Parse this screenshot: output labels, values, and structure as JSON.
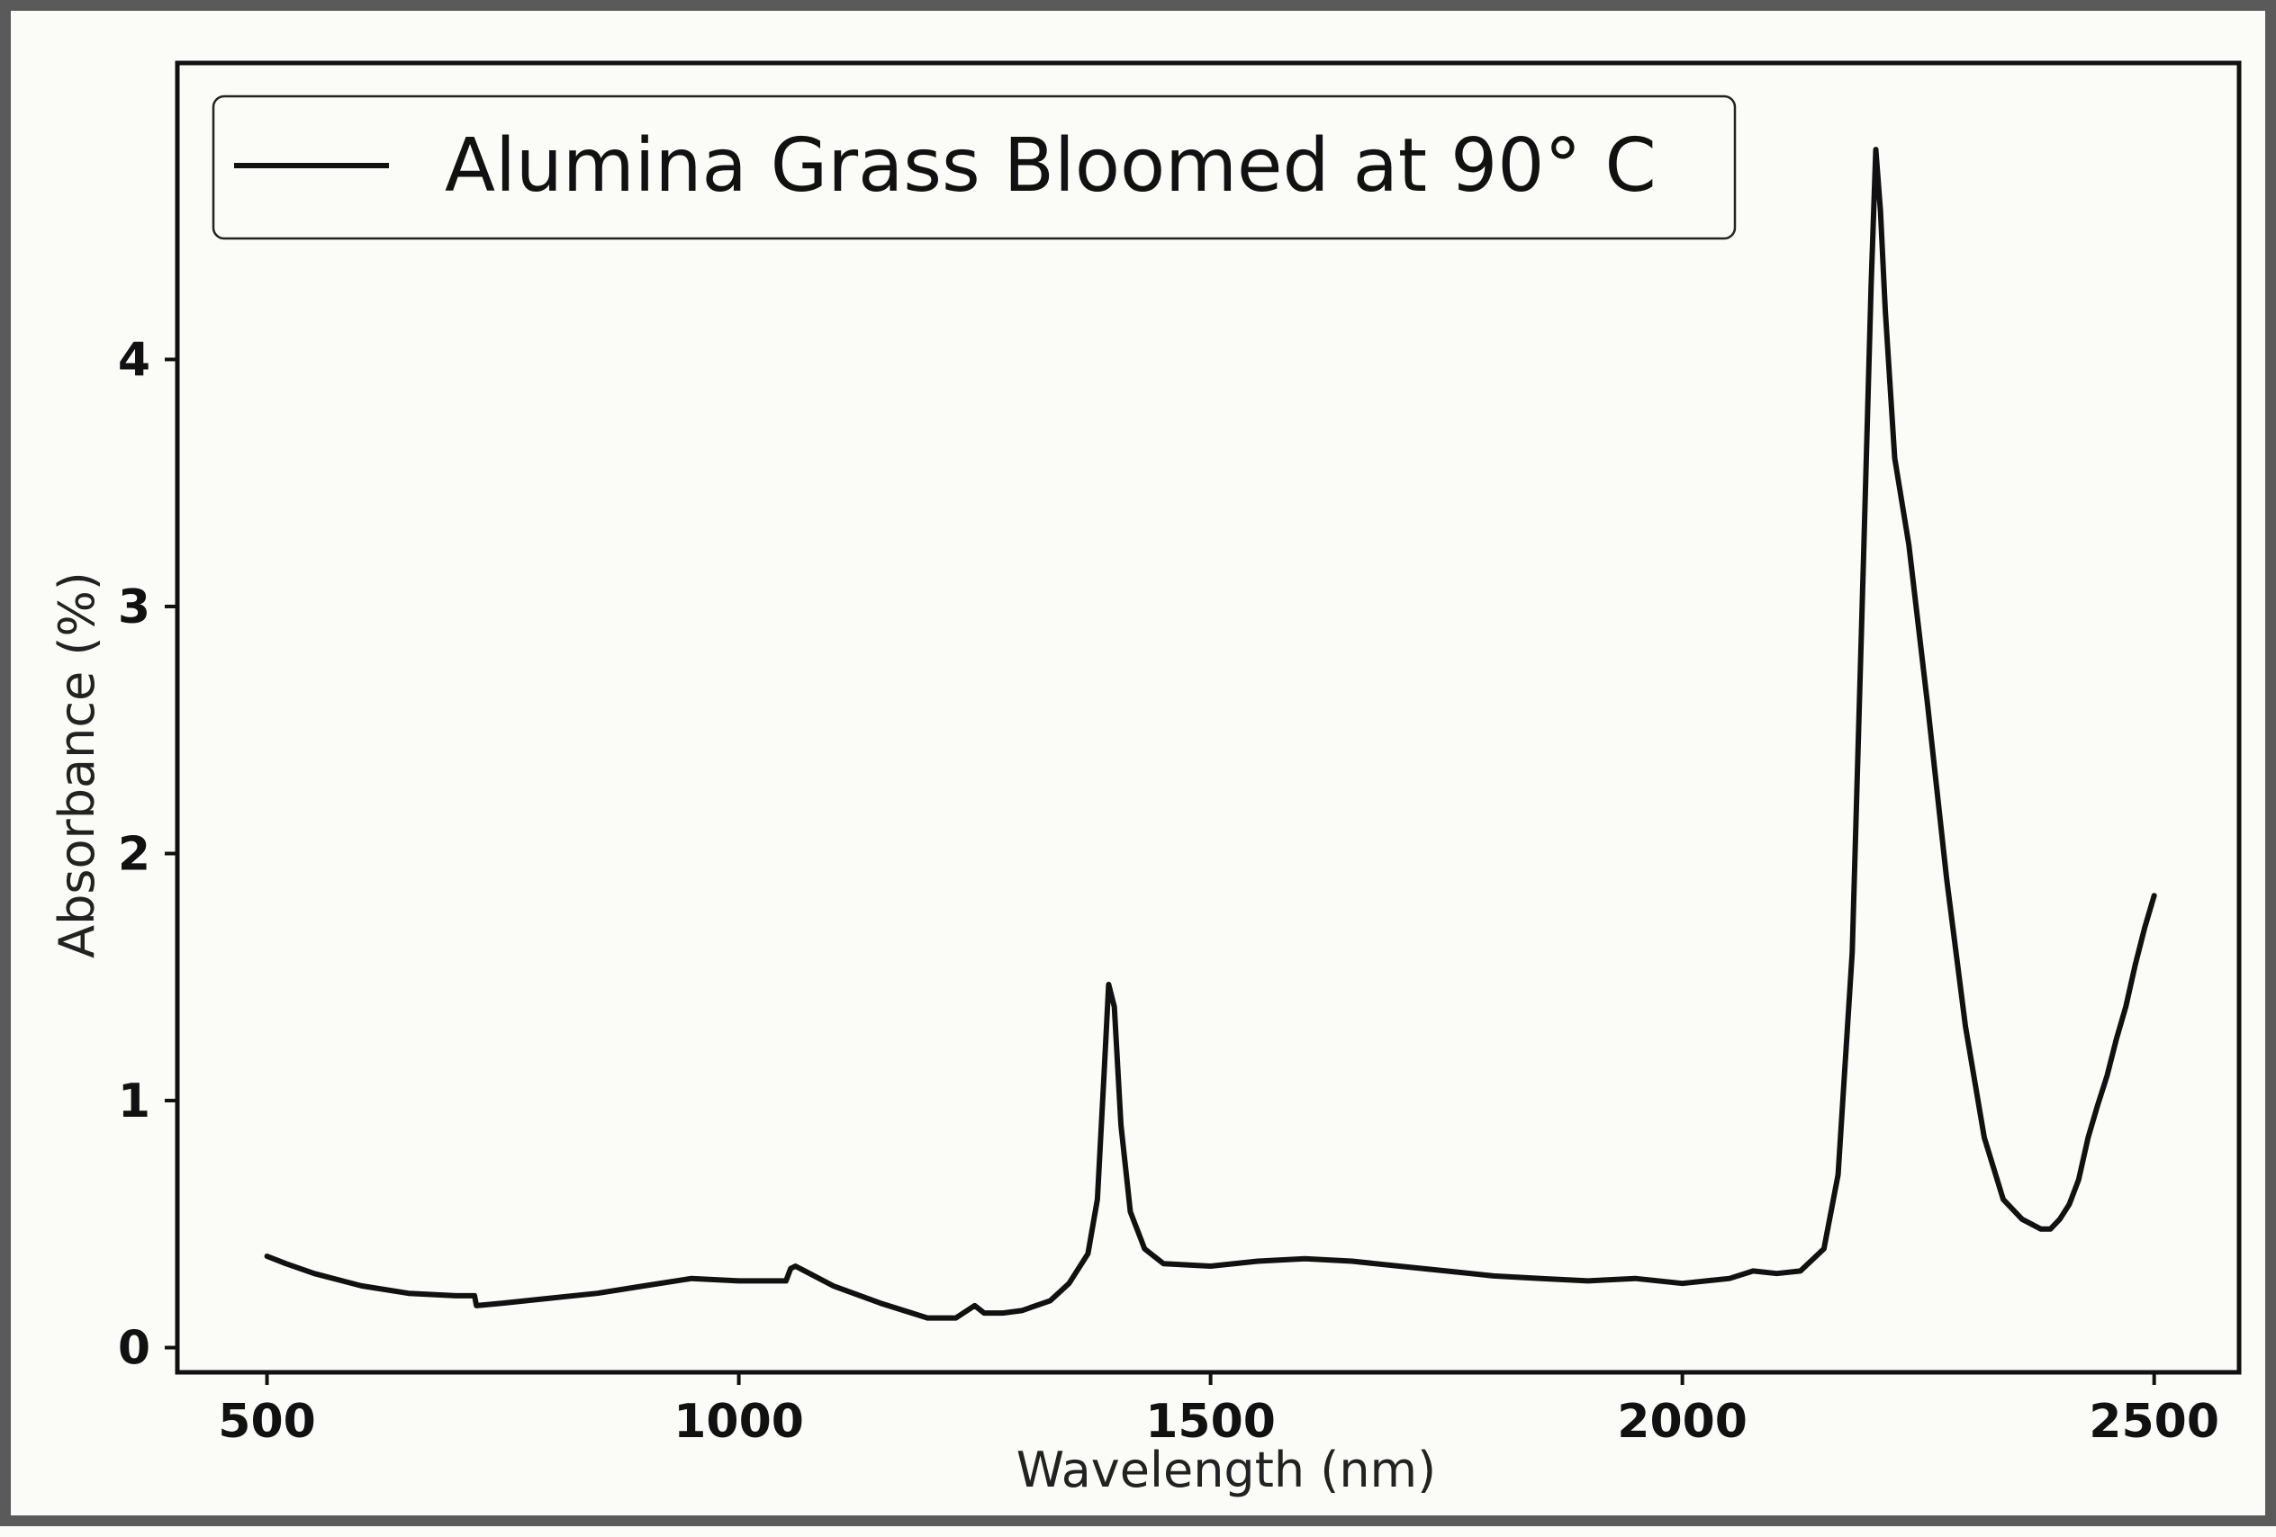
{
  "chart_data": {
    "type": "line",
    "title": "",
    "xlabel": "Wavelength (nm)",
    "ylabel": "Absorbance (%)",
    "xlim": [
      405,
      2590
    ],
    "ylim": [
      -0.1,
      5.2
    ],
    "x_ticks": [
      500,
      1000,
      1500,
      2000,
      2500
    ],
    "y_ticks": [
      0,
      1,
      2,
      3,
      4
    ],
    "grid": false,
    "legend_position": "top-left",
    "line_color": "#111111",
    "series": [
      {
        "name": "Alumina Grass Bloomed at 90° C",
        "x": [
          500,
          520,
          550,
          600,
          650,
          700,
          720,
          722,
          750,
          800,
          850,
          900,
          950,
          1000,
          1050,
          1055,
          1060,
          1070,
          1100,
          1150,
          1200,
          1230,
          1250,
          1260,
          1280,
          1300,
          1330,
          1350,
          1370,
          1380,
          1387,
          1392,
          1398,
          1405,
          1415,
          1430,
          1450,
          1500,
          1550,
          1600,
          1650,
          1700,
          1750,
          1800,
          1850,
          1900,
          1950,
          2000,
          2050,
          2075,
          2100,
          2125,
          2150,
          2165,
          2180,
          2192,
          2200,
          2205,
          2210,
          2215,
          2225,
          2240,
          2260,
          2280,
          2300,
          2320,
          2340,
          2360,
          2370,
          2380,
          2390,
          2400,
          2410,
          2420,
          2430,
          2440,
          2450,
          2460,
          2470,
          2480,
          2490,
          2500
        ],
        "y": [
          0.37,
          0.34,
          0.3,
          0.25,
          0.22,
          0.21,
          0.21,
          0.17,
          0.18,
          0.2,
          0.22,
          0.25,
          0.28,
          0.27,
          0.27,
          0.32,
          0.33,
          0.31,
          0.25,
          0.18,
          0.12,
          0.12,
          0.17,
          0.14,
          0.14,
          0.15,
          0.19,
          0.26,
          0.38,
          0.6,
          1.1,
          1.47,
          1.38,
          0.9,
          0.55,
          0.4,
          0.34,
          0.33,
          0.35,
          0.36,
          0.35,
          0.33,
          0.31,
          0.29,
          0.28,
          0.27,
          0.28,
          0.26,
          0.28,
          0.31,
          0.3,
          0.31,
          0.4,
          0.7,
          1.6,
          3.2,
          4.3,
          4.85,
          4.6,
          4.2,
          3.6,
          3.25,
          2.6,
          1.9,
          1.3,
          0.85,
          0.6,
          0.52,
          0.5,
          0.48,
          0.48,
          0.52,
          0.58,
          0.68,
          0.85,
          0.98,
          1.1,
          1.25,
          1.38,
          1.55,
          1.7,
          1.83
        ]
      }
    ]
  }
}
